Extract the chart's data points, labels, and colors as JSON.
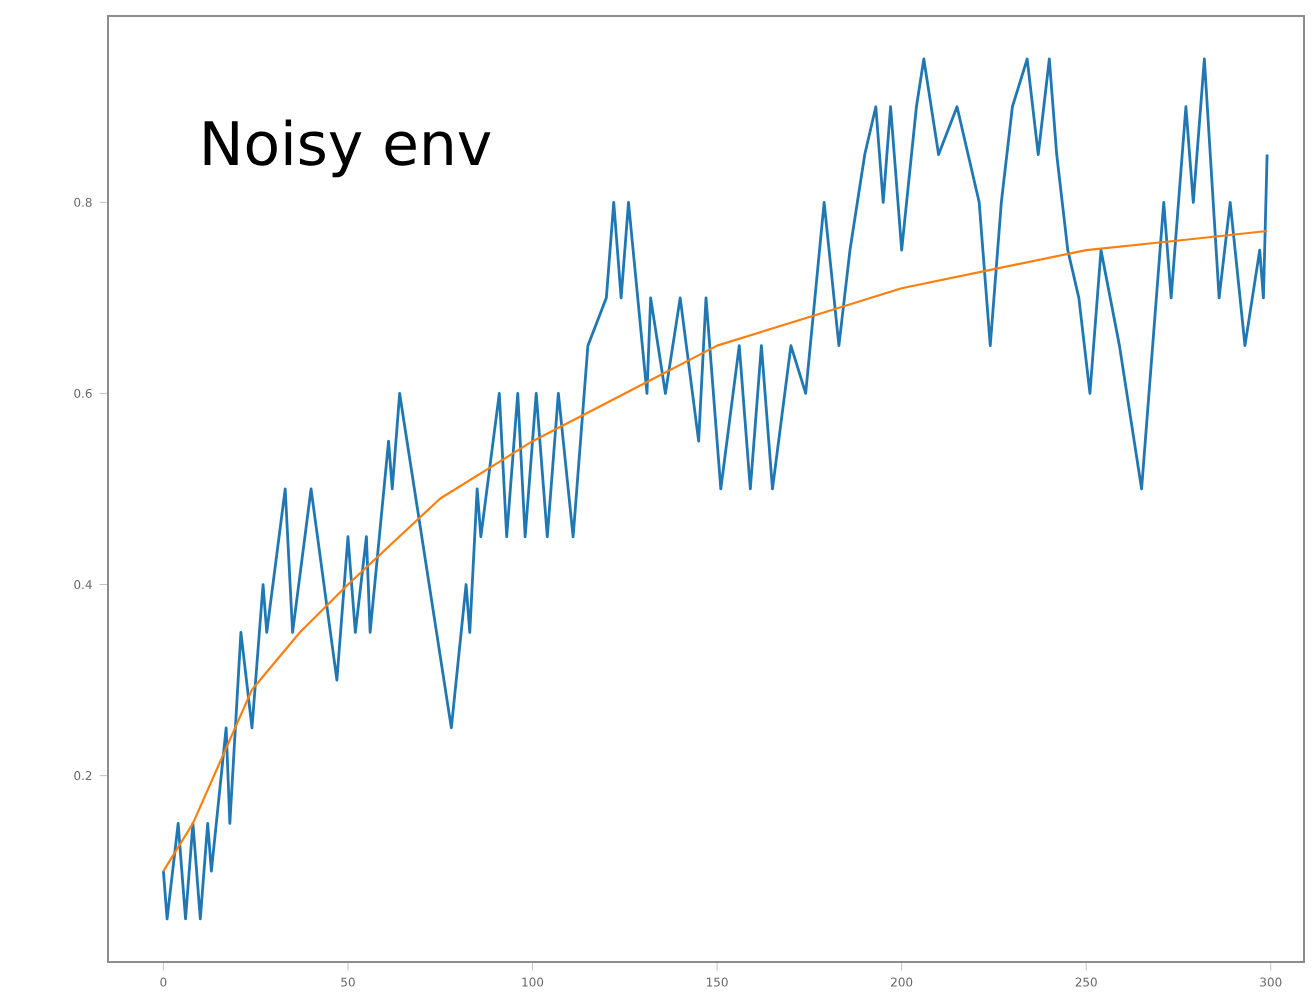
{
  "chart_data": {
    "type": "line",
    "annotations": [
      "Noisy env"
    ],
    "xlim": [
      -15,
      309
    ],
    "ylim": [
      0.005,
      0.995
    ],
    "xticks": [
      0,
      50,
      100,
      150,
      200,
      250,
      300
    ],
    "yticks": [
      0.2,
      0.4,
      0.6,
      0.8
    ],
    "series": [
      {
        "color": "#1f77b4",
        "x": [
          0,
          1,
          4,
          6,
          8,
          10,
          12,
          13,
          17,
          18,
          21,
          24,
          27,
          28,
          33,
          35,
          40,
          47,
          50,
          52,
          55,
          56,
          61,
          62,
          64,
          78,
          82,
          83,
          85,
          86,
          91,
          93,
          96,
          98,
          101,
          104,
          107,
          111,
          115,
          120,
          122,
          124,
          126,
          131,
          132,
          136,
          140,
          145,
          147,
          151,
          156,
          159,
          162,
          165,
          170,
          174,
          179,
          183,
          186,
          190,
          193,
          195,
          197,
          200,
          204,
          206,
          210,
          215,
          221,
          224,
          227,
          230,
          234,
          237,
          240,
          242,
          245,
          248,
          251,
          254,
          259,
          265,
          271,
          273,
          277,
          279,
          282,
          286,
          289,
          293,
          297,
          298,
          299
        ],
        "values": [
          0.1,
          0.05,
          0.15,
          0.05,
          0.15,
          0.05,
          0.15,
          0.1,
          0.25,
          0.15,
          0.35,
          0.25,
          0.4,
          0.35,
          0.5,
          0.35,
          0.5,
          0.3,
          0.45,
          0.35,
          0.45,
          0.35,
          0.55,
          0.5,
          0.6,
          0.25,
          0.4,
          0.35,
          0.5,
          0.45,
          0.6,
          0.45,
          0.6,
          0.45,
          0.6,
          0.45,
          0.6,
          0.45,
          0.65,
          0.7,
          0.8,
          0.7,
          0.8,
          0.6,
          0.7,
          0.6,
          0.7,
          0.55,
          0.7,
          0.5,
          0.65,
          0.5,
          0.65,
          0.5,
          0.65,
          0.6,
          0.8,
          0.65,
          0.75,
          0.85,
          0.9,
          0.8,
          0.9,
          0.75,
          0.9,
          0.95,
          0.85,
          0.9,
          0.8,
          0.65,
          0.8,
          0.9,
          0.95,
          0.85,
          0.95,
          0.85,
          0.75,
          0.7,
          0.6,
          0.75,
          0.65,
          0.5,
          0.8,
          0.7,
          0.9,
          0.8,
          0.95,
          0.7,
          0.8,
          0.65,
          0.75,
          0.7,
          0.85
        ]
      },
      {
        "color": "#ff7f0e",
        "x": [
          0,
          8,
          24,
          37,
          50,
          75,
          100,
          125,
          150,
          175,
          200,
          225,
          250,
          275,
          299
        ],
        "values": [
          0.1,
          0.15,
          0.29,
          0.35,
          0.4,
          0.49,
          0.55,
          0.6,
          0.65,
          0.68,
          0.71,
          0.73,
          0.75,
          0.76,
          0.77
        ]
      }
    ]
  }
}
